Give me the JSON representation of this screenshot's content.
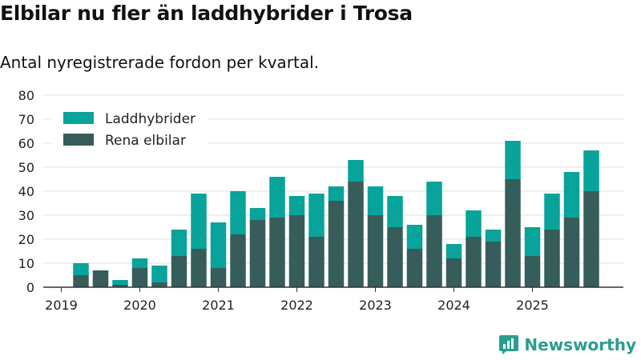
{
  "title": "Elbilar nu fler än laddhybrider i Trosa",
  "subtitle": "Antal nyregistrerade fordon per kvartal.",
  "brand": "Newsworthy",
  "colors": {
    "laddhybrider": "#08a39a",
    "elbilar": "#365d5a",
    "grid": "#dddddd",
    "axis": "#333333",
    "text": "#222222",
    "brand": "#2a9d8f"
  },
  "chart_data": {
    "type": "bar",
    "stacked": true,
    "title": "Elbilar nu fler än laddhybrider i Trosa",
    "subtitle": "Antal nyregistrerade fordon per kvartal.",
    "xlabel": "",
    "ylabel": "",
    "ylim": [
      0,
      80
    ],
    "yticks": [
      0,
      10,
      20,
      30,
      40,
      50,
      60,
      70,
      80
    ],
    "grid": true,
    "legend_position": "top-left",
    "categories": [
      "2019 Q2",
      "2019 Q3",
      "2019 Q4",
      "2020 Q1",
      "2020 Q2",
      "2020 Q3",
      "2020 Q4",
      "2021 Q1",
      "2021 Q2",
      "2021 Q3",
      "2021 Q4",
      "2022 Q1",
      "2022 Q2",
      "2022 Q3",
      "2022 Q4",
      "2023 Q1",
      "2023 Q2",
      "2023 Q3",
      "2023 Q4",
      "2024 Q1",
      "2024 Q2",
      "2024 Q3",
      "2024 Q4",
      "2025 Q1",
      "2025 Q2",
      "2025 Q3",
      "2025 Q4"
    ],
    "year_labels": [
      "2019",
      "2020",
      "2021",
      "2022",
      "2023",
      "2024",
      "2025"
    ],
    "series": [
      {
        "name": "Rena elbilar",
        "values": [
          5,
          7,
          1,
          8,
          2,
          13,
          16,
          8,
          22,
          28,
          29,
          30,
          21,
          36,
          44,
          30,
          25,
          16,
          30,
          12,
          21,
          19,
          45,
          13,
          24,
          29,
          40
        ]
      },
      {
        "name": "Laddhybrider",
        "values": [
          5,
          0,
          2,
          4,
          7,
          11,
          23,
          19,
          18,
          5,
          17,
          8,
          18,
          6,
          9,
          12,
          13,
          10,
          14,
          6,
          11,
          5,
          16,
          12,
          15,
          19,
          17
        ]
      }
    ]
  }
}
